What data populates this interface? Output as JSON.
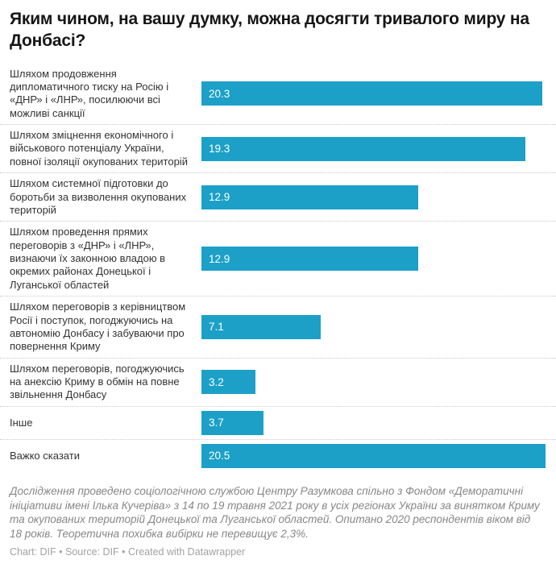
{
  "title": "Яким чином, на вашу думку, можна досягти тривалого миру на Донбасі?",
  "chart_data": {
    "type": "bar",
    "orientation": "horizontal",
    "title": "Яким чином, на вашу думку, можна досягти тривалого миру на Донбасі?",
    "categories": [
      "Шляхом продовження дипломатичного тиску на Росію і «ДНР» і «ЛНР», посилюючи всі можливі санкції",
      "Шляхом зміцнення економічного і військового потенціалу України, повної ізоляції окупованих територій",
      "Шляхом системної підготовки до боротьби за визволення окупованих територій",
      "Шляхом проведення прямих переговорів з «ДНР» і «ЛНР», визнаючи їх законною владою в окремих районах Донецької і Луганської областей",
      "Шляхом переговорів з керівництвом Росії і поступок, погоджуючись на автономію Донбасу і забуваючи про повернення Криму",
      "Шляхом переговорів, погоджуючись на анексію Криму в обмін на повне звільнення Донбасу",
      "Інше",
      "Важко сказати"
    ],
    "values": [
      20.3,
      19.3,
      12.9,
      12.9,
      7.1,
      3.2,
      3.7,
      20.5
    ],
    "xlabel": "",
    "ylabel": "",
    "xlim": [
      0,
      21.1
    ],
    "grid": "off",
    "legend": "none",
    "value_labels": "inside-left, white"
  },
  "colors": {
    "bar": "#1ca0c8",
    "title": "#161616",
    "label": "#333333",
    "note": "#878787",
    "attribution": "#a2a2a2",
    "separator": "#c9c9c9"
  },
  "footer": {
    "note": "Дослідження проведено соціологічною службою Центру Разумкова спільно з Фондом «Деморатичні ініціативи імені Ілька Кучеріва» з 14 по 19 травня 2021 року в усіх регіонах України за винятком Криму та окупованих територій Донецької та Луганської областей. Опитано 2020 респондентів віком від 18 років. Теоретична похибка вибірки не перевищує 2,3%.",
    "attribution": {
      "chart_prefix": "Chart: ",
      "chart_source": "DIF",
      "sep1": " • ",
      "source_prefix": "Source: ",
      "source_name": "DIF",
      "sep2": " • ",
      "created": "Created with Datawrapper"
    }
  }
}
